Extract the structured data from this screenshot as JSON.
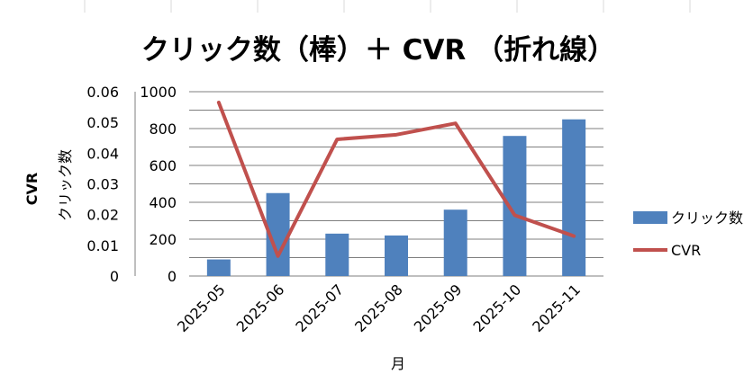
{
  "chart_data": {
    "type": "bar",
    "title": "クリック数（棒）＋ CVR （折れ線）",
    "xlabel": "月",
    "categories": [
      "2025-05",
      "2025-06",
      "2025-07",
      "2025-08",
      "2025-09",
      "2025-10",
      "2025-11"
    ],
    "series": [
      {
        "name": "クリック数",
        "type": "bar",
        "axis": "primary",
        "color": "#4f81bd",
        "values": [
          90,
          450,
          230,
          220,
          360,
          760,
          850
        ]
      },
      {
        "name": "CVR",
        "type": "line",
        "axis": "secondary",
        "color": "#c0504d",
        "values": [
          0.0565,
          0.0065,
          0.0445,
          0.046,
          0.0497,
          0.0198,
          0.013
        ]
      }
    ],
    "primary_axis": {
      "label": "クリック数",
      "ylim": [
        0,
        1000
      ],
      "ticks": [
        "0",
        "200",
        "400",
        "600",
        "800",
        "1000"
      ]
    },
    "secondary_axis": {
      "label": "CVR",
      "ylim": [
        0,
        0.06
      ],
      "ticks": [
        "0",
        "0.01",
        "0.02",
        "0.03",
        "0.04",
        "0.05",
        "0.06"
      ]
    },
    "grid": true,
    "legend": "right"
  }
}
